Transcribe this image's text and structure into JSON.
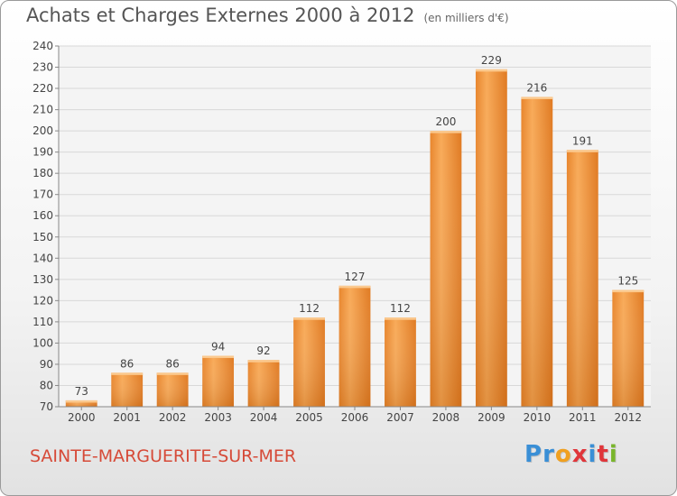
{
  "chart_data": {
    "type": "bar",
    "title": "Achats et Charges Externes 2000 à 2012",
    "unit_label": "(en milliers d'€)",
    "categories": [
      "2000",
      "2001",
      "2002",
      "2003",
      "2004",
      "2005",
      "2006",
      "2007",
      "2008",
      "2009",
      "2010",
      "2011",
      "2012"
    ],
    "values": [
      73,
      86,
      86,
      94,
      92,
      112,
      127,
      112,
      200,
      229,
      216,
      191,
      125
    ],
    "ylim": [
      70,
      240
    ],
    "yticks": [
      70,
      80,
      90,
      100,
      110,
      120,
      130,
      140,
      150,
      160,
      170,
      180,
      190,
      200,
      210,
      220,
      230,
      240
    ],
    "xlabel": "",
    "ylabel": "",
    "grid": true,
    "bar_color": "#f39a3f"
  },
  "footer": {
    "commune": "SAINTE-MARGUERITE-SUR-MER",
    "logo_text": "Proxiti",
    "logo_colors": [
      "#3a8fd6",
      "#3a8fd6",
      "#f0a020",
      "#e0353a",
      "#3a8fd6",
      "#e0353a",
      "#79b52b"
    ]
  }
}
